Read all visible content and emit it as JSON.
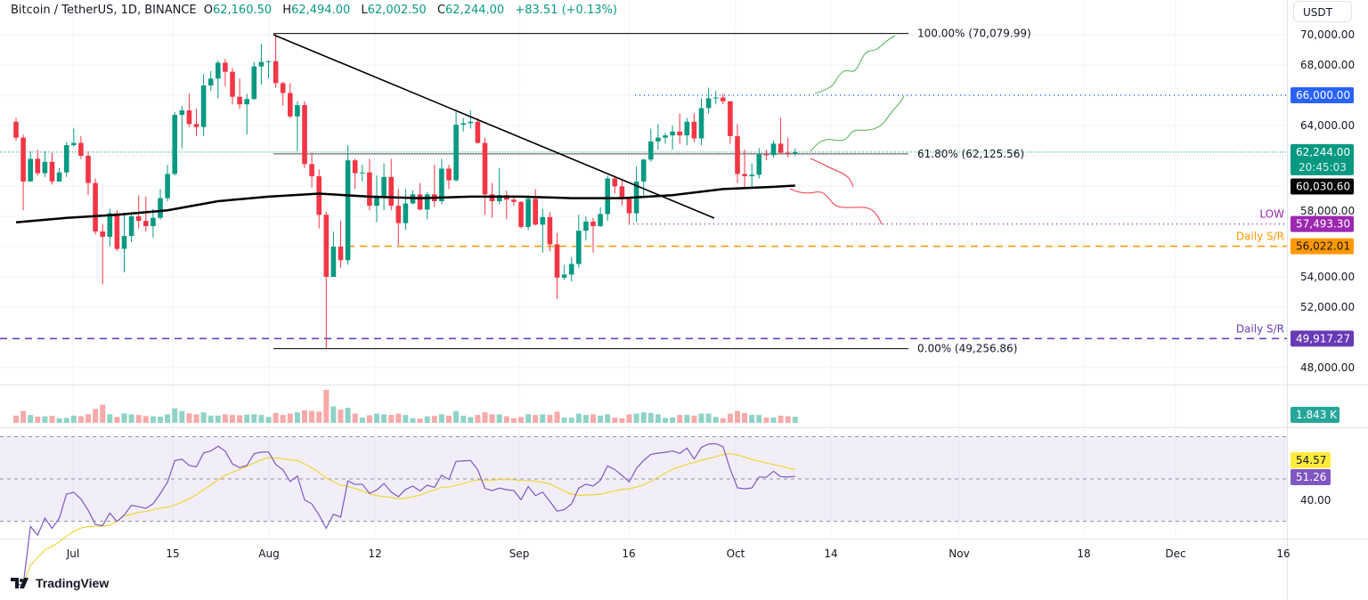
{
  "header": {
    "symbol": "Bitcoin / TetherUS, 1D, BINANCE",
    "o_label": "O",
    "o": "62,160.50",
    "h_label": "H",
    "h": "62,494.00",
    "l_label": "L",
    "l": "62,002.50",
    "c_label": "C",
    "c": "62,244.00",
    "change": "+83.51 (+0.13%)"
  },
  "currency_button": "USDT",
  "brand": "TradingView",
  "colors": {
    "up": "#089981",
    "down": "#f23645",
    "ma": "#000000",
    "rsi": "#7e57c2",
    "rsi_ma": "#f0d43a",
    "blue_level": "#2962ff",
    "low_level": "#9c27b0",
    "orange_level": "#ff9800",
    "purple_level": "#673ab7"
  },
  "chart_data": {
    "type": "candlestick",
    "first_date": "Jun 23",
    "first_open": 64250,
    "close": [
      63200,
      60300,
      61800,
      60850,
      61600,
      60300,
      60900,
      62700,
      62850,
      62000,
      60200,
      57000,
      56650,
      58200,
      55850,
      56700,
      58000,
      57700,
      57350,
      57900,
      59200,
      60800,
      64700,
      65000,
      64100,
      63900,
      66650,
      67100,
      68150,
      67550,
      65900,
      65400,
      65750,
      67900,
      68200,
      68250,
      66800,
      66150,
      64600,
      65350,
      61450,
      60650,
      58100,
      54000,
      56000,
      55100,
      61700,
      60850,
      60900,
      58700,
      59350,
      60600,
      58700,
      57550,
      58850,
      59450,
      58450,
      59450,
      59000,
      61150,
      60380,
      64050,
      64150,
      64250,
      62850,
      59450,
      59000,
      59400,
      59100,
      58950,
      57300,
      59150,
      57450,
      57950,
      56150,
      53950,
      54150,
      54850,
      57050,
      57650,
      57350,
      58150,
      60500,
      59980,
      59150,
      58200,
      60300,
      61750,
      62950,
      63200,
      63350,
      63600,
      63350,
      64250,
      63150,
      65150,
      65800,
      65850,
      65600,
      63300,
      60800,
      60650,
      60750,
      62100,
      62050,
      62800,
      62200,
      62160.5,
      62244
    ],
    "high": [
      64500,
      63400,
      62300,
      62400,
      62300,
      62200,
      61200,
      62900,
      63800,
      63300,
      62300,
      60500,
      57500,
      58500,
      58400,
      58200,
      58300,
      59400,
      59300,
      58500,
      59800,
      61400,
      64900,
      65300,
      66100,
      65100,
      67400,
      67600,
      68300,
      68400,
      67800,
      67100,
      66100,
      68200,
      69400,
      68300,
      70080,
      66900,
      66800,
      65600,
      65600,
      62200,
      61100,
      58300,
      57000,
      57700,
      62700,
      61800,
      61400,
      61800,
      60700,
      61500,
      61800,
      59800,
      59800,
      59700,
      60200,
      59600,
      61400,
      61800,
      61400,
      64900,
      64500,
      65000,
      64500,
      63200,
      60200,
      61200,
      59700,
      59400,
      59000,
      59400,
      59800,
      58500,
      58300,
      56900,
      54800,
      55300,
      58100,
      58000,
      57900,
      58600,
      60700,
      60600,
      60400,
      59200,
      61300,
      61800,
      63800,
      64100,
      63500,
      64000,
      64800,
      64500,
      64800,
      65800,
      66500,
      66300,
      66100,
      65600,
      64100,
      62400,
      61500,
      62500,
      62400,
      63000,
      64500,
      63200,
      62494
    ],
    "low": [
      63000,
      58400,
      60300,
      60700,
      60600,
      60100,
      60300,
      60600,
      62600,
      61800,
      59400,
      56800,
      53500,
      56000,
      55700,
      54300,
      56300,
      57200,
      57000,
      56600,
      57800,
      59000,
      60700,
      62500,
      63900,
      63300,
      63300,
      66300,
      65800,
      66600,
      65400,
      65100,
      63400,
      65700,
      66700,
      67100,
      66500,
      65300,
      64500,
      62300,
      61200,
      59900,
      57200,
      49257,
      54000,
      54600,
      54800,
      59800,
      60300,
      58400,
      57600,
      58400,
      58400,
      56100,
      57100,
      58800,
      58400,
      57800,
      58600,
      58800,
      59800,
      60300,
      63600,
      63800,
      62800,
      58100,
      57900,
      58800,
      57800,
      58700,
      57200,
      57100,
      57400,
      55600,
      55700,
      52550,
      53800,
      53700,
      54600,
      56400,
      55600,
      57300,
      57700,
      59500,
      58700,
      57500,
      57600,
      59200,
      61600,
      62400,
      62800,
      62400,
      62800,
      62700,
      62900,
      62700,
      64800,
      65400,
      65400,
      62800,
      60200,
      59900,
      59800,
      60500,
      61700,
      61900,
      62100,
      61900,
      62002.5
    ],
    "volume_k": [
      2.2,
      3.6,
      2.4,
      1.9,
      2.0,
      2.1,
      1.4,
      1.5,
      2.2,
      2.0,
      2.6,
      4.2,
      5.5,
      2.6,
      1.8,
      2.9,
      2.6,
      2.4,
      2.1,
      2.0,
      1.9,
      2.6,
      4.4,
      3.6,
      2.9,
      2.6,
      3.2,
      2.2,
      2.2,
      2.6,
      2.4,
      2.3,
      2.5,
      2.6,
      2.4,
      1.8,
      3.0,
      2.4,
      2.8,
      3.2,
      3.8,
      3.6,
      3.4,
      10.0,
      5.0,
      4.0,
      4.6,
      2.8,
      1.6,
      2.3,
      2.8,
      2.6,
      2.4,
      2.8,
      2.4,
      1.4,
      1.3,
      2.0,
      2.1,
      2.6,
      2.2,
      3.6,
      2.2,
      1.8,
      2.4,
      3.2,
      2.6,
      2.6,
      2.0,
      1.4,
      1.8,
      2.6,
      2.4,
      2.6,
      2.4,
      3.4,
      1.6,
      1.6,
      2.8,
      2.4,
      2.6,
      2.2,
      2.6,
      1.6,
      1.4,
      2.6,
      2.8,
      3.2,
      3.0,
      2.6,
      1.5,
      1.6,
      2.4,
      2.4,
      2.2,
      2.8,
      2.8,
      1.8,
      1.4,
      2.8,
      3.6,
      3.0,
      2.4,
      2.4,
      1.6,
      1.6,
      2.2,
      2.0,
      1.843
    ],
    "ma_line": {
      "dates": [
        "Jun 23",
        "Jun 30",
        "Jul 7",
        "Jul 14",
        "Jul 21",
        "Jul 28",
        "Aug 4",
        "Aug 11",
        "Aug 18",
        "Aug 25",
        "Sep 1",
        "Sep 8",
        "Sep 15",
        "Sep 22",
        "Sep 29",
        "Oct 6",
        "Oct 9"
      ],
      "values": [
        57600,
        57900,
        58100,
        58400,
        59000,
        59300,
        59500,
        59300,
        59200,
        59300,
        59300,
        59200,
        59200,
        59400,
        59800,
        59950,
        60030.6
      ]
    },
    "price_ticks": [
      "70,000.00",
      "68,000.00",
      "64,000.00",
      "58,000.00",
      "54,000.00",
      "52,000.00",
      "48,000.00"
    ],
    "price_tick_values": [
      70000,
      68000,
      64000,
      58000,
      54000,
      52000,
      48000
    ],
    "time_ticks": [
      "Jul",
      "15",
      "Aug",
      "12",
      "Sep",
      "16",
      "Oct",
      "14",
      "Nov",
      "18",
      "Dec",
      "16"
    ],
    "rsi_ticks": [
      "40.00"
    ],
    "fib": [
      {
        "label": "100.00% (70,079.99)",
        "price": 70079.99
      },
      {
        "label": "61.80% (62,125.56)",
        "price": 62125.56
      },
      {
        "label": "0.00% (49,256.86)",
        "price": 49256.86
      }
    ],
    "levels": [
      {
        "name": "resistance",
        "price": 66000,
        "badge": "66,000.00",
        "color": "#2962ff",
        "text_color": "#ffffff"
      },
      {
        "name": "low",
        "price": 57493.3,
        "badge": "57,493.30",
        "label": "LOW",
        "color": "#9c27b0",
        "text_color": "#ffffff"
      },
      {
        "name": "daily-sr-upper",
        "price": 56022.01,
        "badge": "56,022.01",
        "label": "Daily S/R",
        "color": "#ff9800",
        "text_color": "#131722"
      },
      {
        "name": "daily-sr-lower",
        "price": 49917.27,
        "badge": "49,917.27",
        "label": "Daily S/R",
        "color": "#673ab7",
        "text_color": "#ffffff"
      }
    ],
    "last_price": {
      "value": 62244,
      "badge": "62,244.00",
      "countdown": "20:45:03"
    },
    "ma_badge": "60,030.60",
    "volume_badge": "1.843 K",
    "rsi_value": "51.26",
    "rsi_ma_value": "54.57",
    "rsi_levels": [
      70,
      50,
      30
    ]
  }
}
